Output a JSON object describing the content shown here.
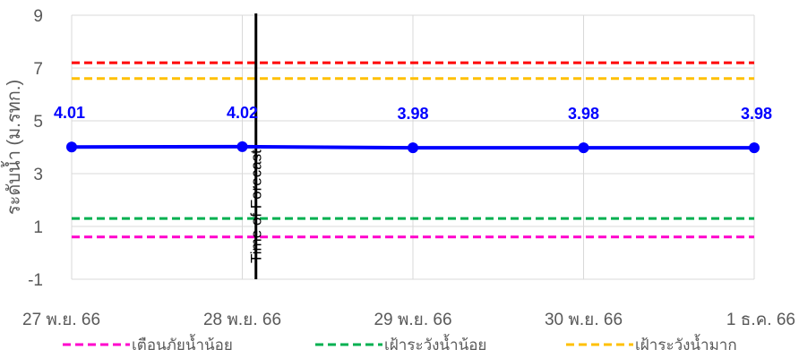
{
  "chart_data": {
    "type": "line",
    "ylabel": "ระดับน้ำ (ม.รทก.)",
    "xlabel": "",
    "ylim": [
      -1,
      9
    ],
    "yticks": [
      -1,
      1,
      3,
      5,
      7,
      9
    ],
    "grid": true,
    "legend_position": "bottom",
    "categories": [
      "27 พ.ย. 66",
      "28 พ.ย. 66",
      "29 พ.ย. 66",
      "30 พ.ย. 66",
      "1 ธ.ค. 66"
    ],
    "series": [
      {
        "values": [
          4.01,
          4.02,
          3.98,
          3.98,
          3.98
        ],
        "data_labels": [
          "4.01",
          "4.02",
          "3.98",
          "3.98",
          "3.98"
        ],
        "color": "#0000ff"
      }
    ],
    "thresholds": [
      {
        "name": "เตือนภัยน้ำน้อย",
        "value": 0.6,
        "color": "#ff00cc",
        "in_legend": true
      },
      {
        "name": "เฝ้าระวังน้ำน้อย",
        "value": 1.3,
        "color": "#00b050",
        "in_legend": true
      },
      {
        "name": "เฝ้าระวังน้ำมาก",
        "value": 6.6,
        "color": "#ffc000",
        "in_legend": true
      },
      {
        "name": "",
        "value": 7.2,
        "color": "#ff0000",
        "in_legend": false
      }
    ],
    "annotation": {
      "label": "Time of Forecast",
      "x_category_position": 1.08,
      "color": "#000000"
    }
  }
}
